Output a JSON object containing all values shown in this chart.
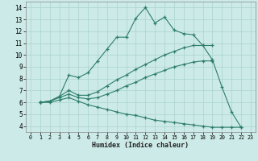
{
  "xlabel": "Humidex (Indice chaleur)",
  "xlim": [
    -0.5,
    23.5
  ],
  "ylim": [
    3.5,
    14.5
  ],
  "xticks": [
    0,
    1,
    2,
    3,
    4,
    5,
    6,
    7,
    8,
    9,
    10,
    11,
    12,
    13,
    14,
    15,
    16,
    17,
    18,
    19,
    20,
    21,
    22,
    23
  ],
  "yticks": [
    4,
    5,
    6,
    7,
    8,
    9,
    10,
    11,
    12,
    13,
    14
  ],
  "bg_color": "#cceae7",
  "grid_color": "#aad4d0",
  "line_color": "#2e7d6e",
  "lines": [
    {
      "x": [
        1,
        2,
        3,
        4,
        5,
        6,
        7,
        8,
        9,
        10,
        11,
        12,
        13,
        14,
        15,
        16,
        17,
        18,
        19,
        20,
        21,
        22
      ],
      "y": [
        6.0,
        6.1,
        6.5,
        8.3,
        8.1,
        8.5,
        9.5,
        10.5,
        11.5,
        11.5,
        13.1,
        14.0,
        12.7,
        13.2,
        12.1,
        11.8,
        11.7,
        10.8,
        9.6,
        7.3,
        5.2,
        3.9
      ]
    },
    {
      "x": [
        1,
        2,
        3,
        4,
        5,
        6,
        7,
        8,
        9,
        10,
        11,
        12,
        13,
        14,
        15,
        16,
        17,
        18,
        19
      ],
      "y": [
        6.0,
        6.1,
        6.5,
        7.0,
        6.6,
        6.6,
        6.9,
        7.4,
        7.9,
        8.3,
        8.8,
        9.2,
        9.6,
        10.0,
        10.3,
        10.6,
        10.8,
        10.8,
        10.8
      ]
    },
    {
      "x": [
        1,
        2,
        3,
        4,
        5,
        6,
        7,
        8,
        9,
        10,
        11,
        12,
        13,
        14,
        15,
        16,
        17,
        18,
        19
      ],
      "y": [
        6.0,
        6.1,
        6.4,
        6.7,
        6.4,
        6.3,
        6.4,
        6.7,
        7.0,
        7.4,
        7.7,
        8.1,
        8.4,
        8.7,
        9.0,
        9.2,
        9.4,
        9.5,
        9.5
      ]
    },
    {
      "x": [
        1,
        2,
        3,
        4,
        5,
        6,
        7,
        8,
        9,
        10,
        11,
        12,
        13,
        14,
        15,
        16,
        17,
        18,
        19,
        20,
        21,
        22
      ],
      "y": [
        6.0,
        6.0,
        6.2,
        6.4,
        6.1,
        5.8,
        5.6,
        5.4,
        5.2,
        5.0,
        4.9,
        4.7,
        4.5,
        4.4,
        4.3,
        4.2,
        4.1,
        4.0,
        3.9,
        3.9,
        3.9,
        3.9
      ]
    }
  ]
}
